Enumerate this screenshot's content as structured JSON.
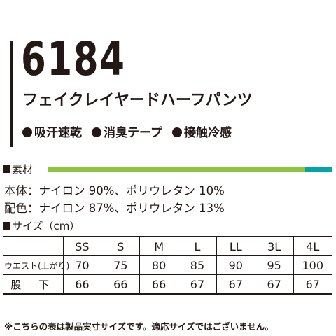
{
  "product": {
    "code": "6184",
    "name": "フェイクレイヤードハーフパンツ"
  },
  "features": [
    "吸汗速乾",
    "消臭テープ",
    "接触冷感"
  ],
  "material": {
    "heading": "素材",
    "bar_colors": [
      "#8cc63f",
      "#00a5a8"
    ],
    "lines": [
      "本体：ナイロン 90%、ポリウレタン 10%",
      "配色：ナイロン 87%、ポリウレタン 13%"
    ]
  },
  "size_table": {
    "heading": "サイズ（cm）",
    "columns": [
      "",
      "SS",
      "S",
      "M",
      "L",
      "LL",
      "3L",
      "4L"
    ],
    "rows": [
      {
        "label": "ウエスト(上がり)",
        "values": [
          "70",
          "75",
          "80",
          "85",
          "90",
          "95",
          "100"
        ]
      },
      {
        "label": "股 下",
        "values": [
          "66",
          "66",
          "66",
          "67",
          "67",
          "67",
          "67"
        ]
      }
    ]
  },
  "note": "※こちらの表は製品実寸サイズです。適応サイズではございません。"
}
